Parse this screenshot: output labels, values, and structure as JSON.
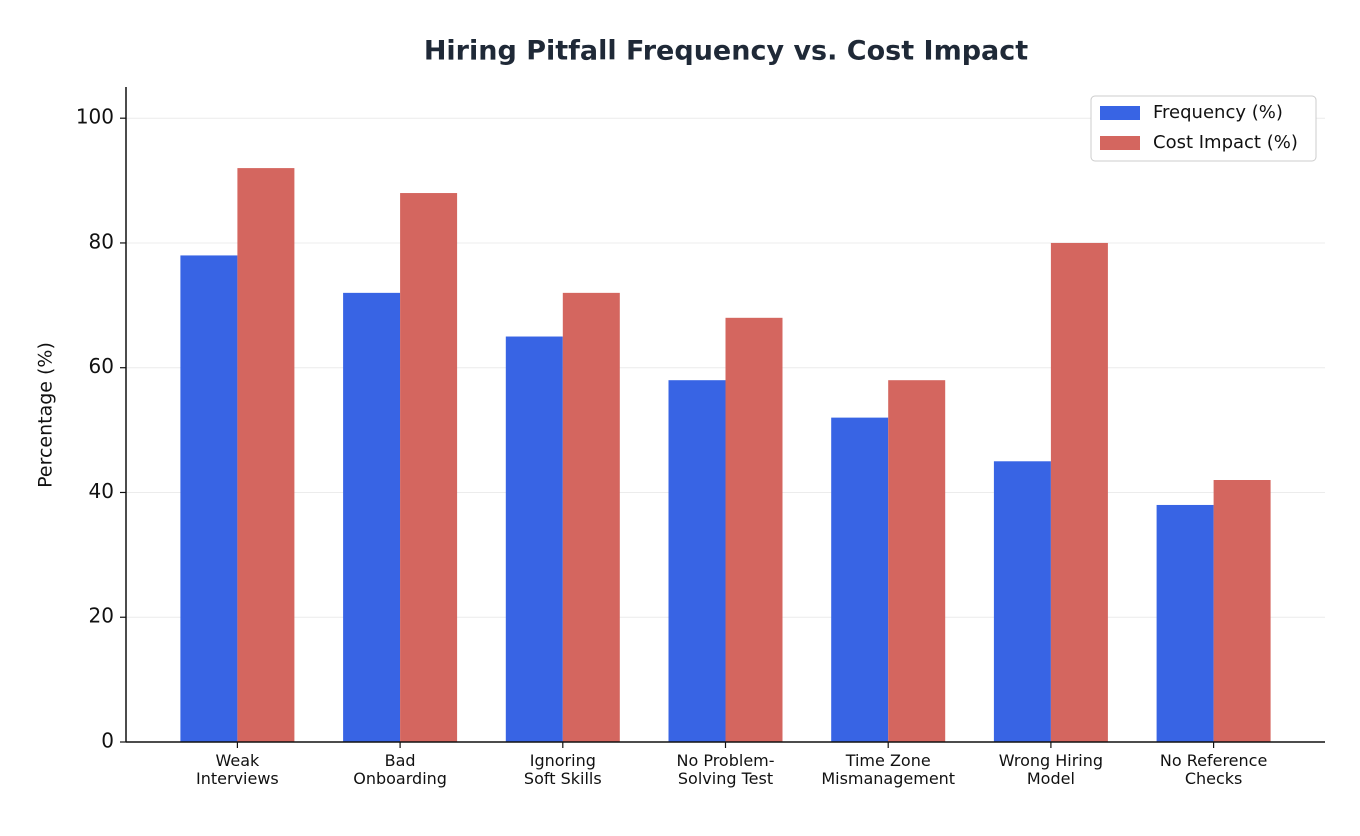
{
  "chart_data": {
    "type": "bar",
    "title": "Hiring Pitfall Frequency vs. Cost Impact",
    "y_label": "Percentage (%)",
    "categories": [
      "Weak\nInterviews",
      "Bad\nOnboarding",
      "Ignoring\nSoft Skills",
      "No Problem-\nSolving Test",
      "Time Zone\nMismanagement",
      "Wrong Hiring\nModel",
      "No Reference\nChecks"
    ],
    "series": [
      {
        "name": "Frequency (%)",
        "color": "#3864e4",
        "values": [
          78,
          72,
          65,
          58,
          52,
          45,
          38
        ]
      },
      {
        "name": "Cost Impact (%)",
        "color": "#d4665f",
        "values": [
          92,
          88,
          72,
          68,
          58,
          80,
          42
        ]
      }
    ],
    "ylim": [
      0,
      105
    ],
    "yticks": [
      0,
      20,
      40,
      60,
      80,
      100
    ],
    "grid": true,
    "legend": "upper-right"
  }
}
